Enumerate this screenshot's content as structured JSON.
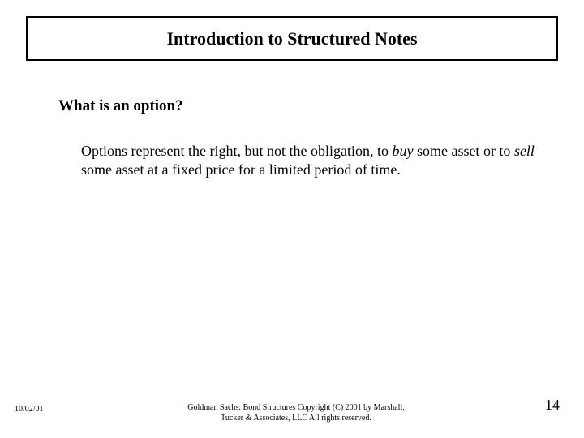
{
  "title": "Introduction to Structured Notes",
  "heading": "What is an option?",
  "body": {
    "part1": "Options represent the right, but not the obligation, to ",
    "italic1": "buy",
    "part2": " some asset or to ",
    "italic2": "sell",
    "part3": " some asset at a fixed price for a limited period of time."
  },
  "footer": {
    "date": "10/02/01",
    "center": "Goldman Sachs:  Bond Structures    Copyright (C) 2001 by Marshall, Tucker & Associates, LLC   All rights reserved.",
    "page": "14"
  },
  "style": {
    "background_color": "#ffffff",
    "text_color": "#000000",
    "border_color": "#000000",
    "title_fontsize": 22,
    "heading_fontsize": 19,
    "body_fontsize": 18,
    "footer_small_fontsize": 10,
    "footer_page_fontsize": 18,
    "font_family": "Times New Roman"
  }
}
